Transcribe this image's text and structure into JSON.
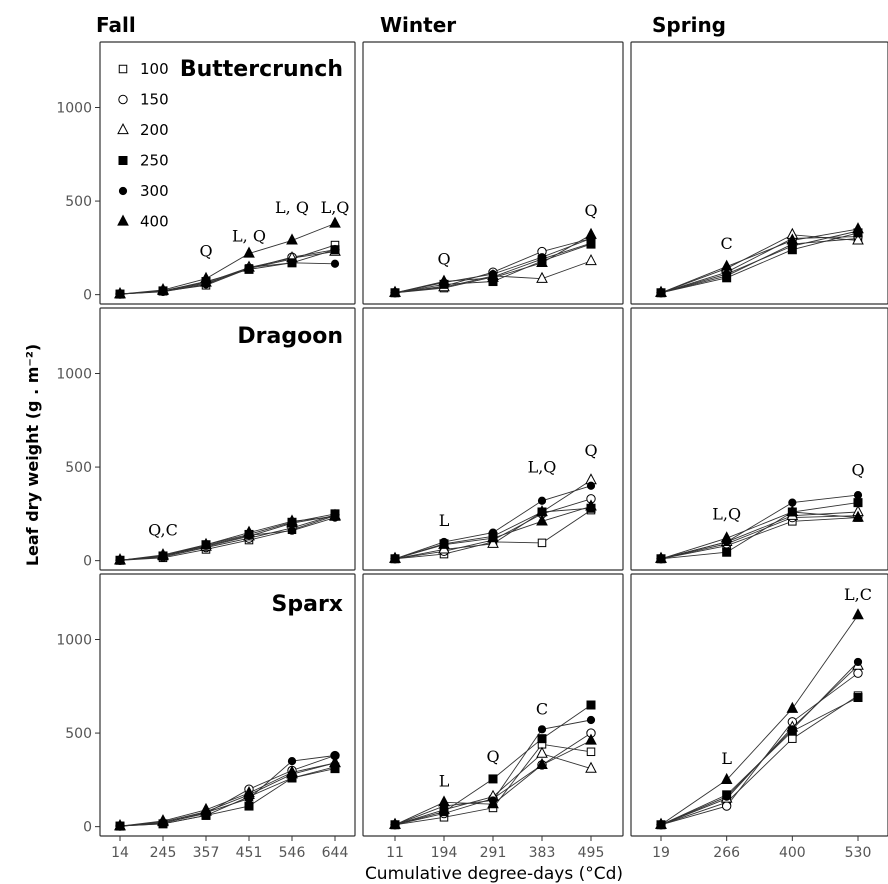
{
  "chart_data": {
    "type": "line",
    "figure": "faceted line chart, 3 cultivars (rows) x 3 seasons (columns)",
    "xlabel": "Cumulative degree-days (°Cd)",
    "ylabel": "Leaf dry weight (g . m⁻²)",
    "ylim": [
      -50,
      1350
    ],
    "y_ticks": [
      0,
      500,
      1000
    ],
    "grid": false,
    "legend": {
      "placement": "top-left",
      "entries": [
        {
          "name": "100",
          "marker": "open-square"
        },
        {
          "name": "150",
          "marker": "open-circle"
        },
        {
          "name": "200",
          "marker": "open-triangle"
        },
        {
          "name": "250",
          "marker": "filled-square"
        },
        {
          "name": "300",
          "marker": "filled-circle"
        },
        {
          "name": "400",
          "marker": "filled-triangle"
        }
      ]
    },
    "seasons": [
      {
        "name": "Fall",
        "x": [
          14,
          245,
          357,
          451,
          546,
          644
        ]
      },
      {
        "name": "Winter",
        "x": [
          11,
          194,
          291,
          383,
          495
        ]
      },
      {
        "name": "Spring",
        "x": [
          19,
          266,
          400,
          530
        ]
      }
    ],
    "cultivars": [
      "Buttercrunch",
      "Dragoon",
      "Sparx"
    ],
    "panels": [
      {
        "cultivar": "Buttercrunch",
        "season": "Fall",
        "series": [
          {
            "name": "100",
            "values": [
              3,
              18,
              50,
              140,
              190,
              265
            ]
          },
          {
            "name": "150",
            "values": [
              3,
              18,
              60,
              140,
              200,
              240
            ]
          },
          {
            "name": "200",
            "values": [
              3,
              20,
              65,
              145,
              195,
              230
            ]
          },
          {
            "name": "250",
            "values": [
              3,
              20,
              70,
              135,
              170,
              240
            ]
          },
          {
            "name": "300",
            "values": [
              3,
              15,
              55,
              145,
              170,
              165
            ]
          },
          {
            "name": "400",
            "values": [
              3,
              25,
              85,
              220,
              290,
              380
            ]
          }
        ],
        "annotations": [
          {
            "x": 357,
            "y": 205,
            "text": "Q"
          },
          {
            "x": 451,
            "y": 285,
            "text": "L, Q"
          },
          {
            "x": 546,
            "y": 435,
            "text": "L, Q"
          },
          {
            "x": 644,
            "y": 435,
            "text": "L,Q"
          }
        ]
      },
      {
        "cultivar": "Buttercrunch",
        "season": "Winter",
        "series": [
          {
            "name": "100",
            "values": [
              10,
              35,
              95,
              190,
              275
            ]
          },
          {
            "name": "150",
            "values": [
              10,
              45,
              120,
              230,
              300
            ]
          },
          {
            "name": "200",
            "values": [
              10,
              40,
              100,
              85,
              180
            ]
          },
          {
            "name": "250",
            "values": [
              10,
              55,
              70,
              180,
              270
            ]
          },
          {
            "name": "300",
            "values": [
              10,
              65,
              110,
              200,
              300
            ]
          },
          {
            "name": "400",
            "values": [
              10,
              70,
              90,
              170,
              320
            ]
          }
        ],
        "annotations": [
          {
            "x": 194,
            "y": 160,
            "text": "Q"
          },
          {
            "x": 495,
            "y": 420,
            "text": "Q"
          }
        ]
      },
      {
        "cultivar": "Buttercrunch",
        "season": "Spring",
        "series": [
          {
            "name": "100",
            "values": [
              10,
              100,
              270,
              300
            ]
          },
          {
            "name": "150",
            "values": [
              10,
              120,
              300,
              310
            ]
          },
          {
            "name": "200",
            "values": [
              10,
              140,
              320,
              290
            ]
          },
          {
            "name": "250",
            "values": [
              10,
              90,
              240,
              330
            ]
          },
          {
            "name": "300",
            "values": [
              10,
              110,
              260,
              340
            ]
          },
          {
            "name": "400",
            "values": [
              10,
              150,
              290,
              350
            ]
          }
        ],
        "annotations": [
          {
            "x": 266,
            "y": 245,
            "text": "C"
          }
        ]
      },
      {
        "cultivar": "Dragoon",
        "season": "Fall",
        "series": [
          {
            "name": "100",
            "values": [
              2,
              15,
              60,
              110,
              165,
              240
            ]
          },
          {
            "name": "150",
            "values": [
              2,
              20,
              70,
              120,
              175,
              245
            ]
          },
          {
            "name": "200",
            "values": [
              2,
              25,
              75,
              130,
              200,
              240
            ]
          },
          {
            "name": "250",
            "values": [
              2,
              25,
              85,
              140,
              205,
              250
            ]
          },
          {
            "name": "300",
            "values": [
              2,
              25,
              80,
              135,
              160,
              230
            ]
          },
          {
            "name": "400",
            "values": [
              2,
              30,
              85,
              150,
              210,
              235
            ]
          }
        ],
        "annotations": [
          {
            "x": 245,
            "y": 135,
            "text": "Q,C"
          }
        ]
      },
      {
        "cultivar": "Dragoon",
        "season": "Winter",
        "series": [
          {
            "name": "100",
            "values": [
              10,
              35,
              100,
              95,
              270
            ]
          },
          {
            "name": "150",
            "values": [
              10,
              50,
              110,
              250,
              330
            ]
          },
          {
            "name": "200",
            "values": [
              10,
              60,
              90,
              260,
              430
            ]
          },
          {
            "name": "250",
            "values": [
              10,
              90,
              130,
              260,
              280
            ]
          },
          {
            "name": "300",
            "values": [
              10,
              100,
              150,
              320,
              400
            ]
          },
          {
            "name": "400",
            "values": [
              10,
              85,
              120,
              210,
              290
            ]
          }
        ],
        "annotations": [
          {
            "x": 194,
            "y": 185,
            "text": "L"
          },
          {
            "x": 383,
            "y": 470,
            "text": "L,Q"
          },
          {
            "x": 495,
            "y": 560,
            "text": "Q"
          }
        ]
      },
      {
        "cultivar": "Dragoon",
        "season": "Spring",
        "series": [
          {
            "name": "100",
            "values": [
              10,
              80,
              210,
              230
            ]
          },
          {
            "name": "150",
            "values": [
              10,
              90,
              230,
              240
            ]
          },
          {
            "name": "200",
            "values": [
              10,
              100,
              240,
              260
            ]
          },
          {
            "name": "250",
            "values": [
              10,
              45,
              260,
              310
            ]
          },
          {
            "name": "300",
            "values": [
              10,
              100,
              310,
              350
            ]
          },
          {
            "name": "400",
            "values": [
              10,
              120,
              260,
              230
            ]
          }
        ],
        "annotations": [
          {
            "x": 266,
            "y": 220,
            "text": "L,Q"
          },
          {
            "x": 530,
            "y": 455,
            "text": "Q"
          }
        ]
      },
      {
        "cultivar": "Sparx",
        "season": "Fall",
        "series": [
          {
            "name": "100",
            "values": [
              3,
              15,
              60,
              160,
              260,
              320
            ]
          },
          {
            "name": "150",
            "values": [
              3,
              20,
              70,
              200,
              300,
              380
            ]
          },
          {
            "name": "200",
            "values": [
              3,
              25,
              80,
              170,
              280,
              340
            ]
          },
          {
            "name": "250",
            "values": [
              3,
              15,
              60,
              110,
              260,
              310
            ]
          },
          {
            "name": "300",
            "values": [
              3,
              20,
              75,
              150,
              350,
              380
            ]
          },
          {
            "name": "400",
            "values": [
              3,
              30,
              90,
              180,
              290,
              340
            ]
          }
        ],
        "annotations": []
      },
      {
        "cultivar": "Sparx",
        "season": "Winter",
        "series": [
          {
            "name": "100",
            "values": [
              10,
              50,
              100,
              440,
              400
            ]
          },
          {
            "name": "150",
            "values": [
              10,
              70,
              150,
              330,
              500
            ]
          },
          {
            "name": "200",
            "values": [
              10,
              90,
              160,
              390,
              310
            ]
          },
          {
            "name": "250",
            "values": [
              10,
              80,
              255,
              470,
              650
            ]
          },
          {
            "name": "300",
            "values": [
              10,
              110,
              140,
              520,
              570
            ]
          },
          {
            "name": "400",
            "values": [
              10,
              130,
              120,
              330,
              460
            ]
          }
        ],
        "annotations": [
          {
            "x": 194,
            "y": 215,
            "text": "L"
          },
          {
            "x": 291,
            "y": 345,
            "text": "Q"
          },
          {
            "x": 383,
            "y": 600,
            "text": "C"
          }
        ]
      },
      {
        "cultivar": "Sparx",
        "season": "Spring",
        "series": [
          {
            "name": "100",
            "values": [
              10,
              130,
              470,
              700
            ]
          },
          {
            "name": "150",
            "values": [
              10,
              110,
              560,
              820
            ]
          },
          {
            "name": "200",
            "values": [
              10,
              150,
              530,
              860
            ]
          },
          {
            "name": "250",
            "values": [
              10,
              170,
              510,
              690
            ]
          },
          {
            "name": "300",
            "values": [
              10,
              160,
              520,
              880
            ]
          },
          {
            "name": "400",
            "values": [
              10,
              250,
              630,
              1130
            ]
          }
        ],
        "annotations": [
          {
            "x": 266,
            "y": 335,
            "text": "L"
          },
          {
            "x": 530,
            "y": 1210,
            "text": "L,C"
          }
        ]
      }
    ]
  }
}
